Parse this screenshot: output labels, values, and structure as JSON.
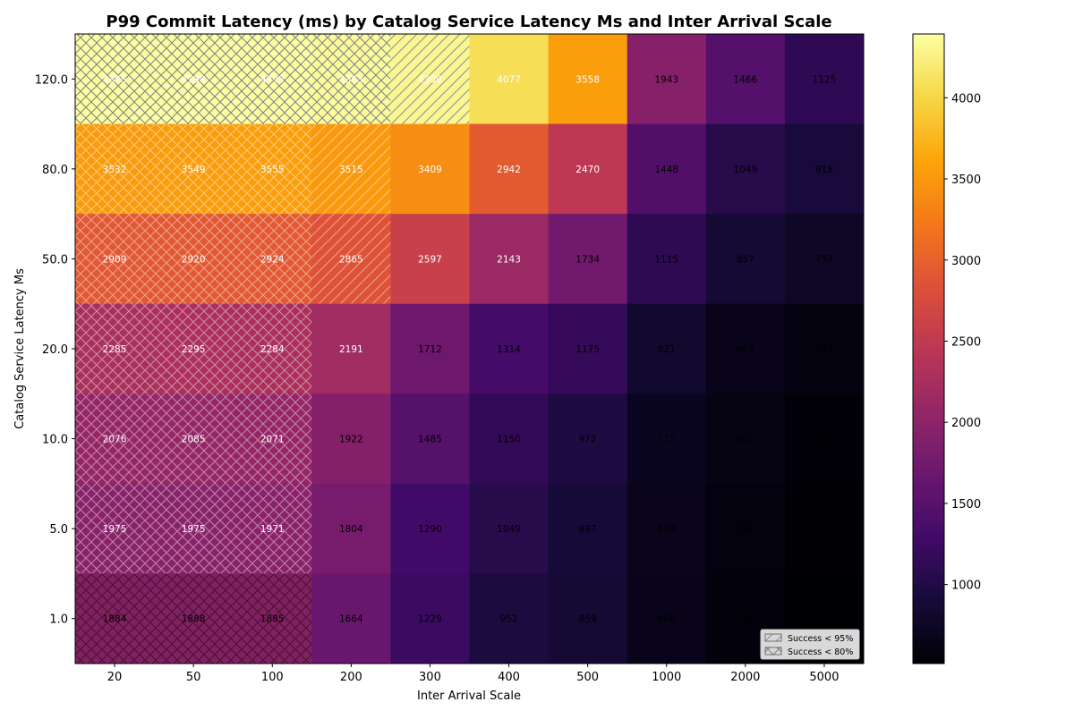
{
  "chart_data": {
    "type": "heatmap",
    "title": "P99 Commit Latency (ms) by Catalog Service Latency Ms and Inter Arrival Scale",
    "xlabel": "Inter Arrival Scale",
    "ylabel": "Catalog Service Latency Ms",
    "x_categories": [
      "20",
      "50",
      "100",
      "200",
      "300",
      "400",
      "500",
      "1000",
      "2000",
      "5000"
    ],
    "y_categories": [
      "120.0",
      "80.0",
      "50.0",
      "20.0",
      "10.0",
      "5.0",
      "1.0"
    ],
    "values": [
      [
        4385,
        4388,
        4393,
        4363,
        4309,
        4077,
        3558,
        1943,
        1466,
        1125
      ],
      [
        3532,
        3549,
        3555,
        3515,
        3409,
        2942,
        2470,
        1448,
        1049,
        918
      ],
      [
        2909,
        2920,
        2924,
        2865,
        2597,
        2143,
        1734,
        1115,
        857,
        757
      ],
      [
        2285,
        2295,
        2284,
        2191,
        1712,
        1314,
        1175,
        821,
        665,
        603
      ],
      [
        2076,
        2085,
        2071,
        1922,
        1485,
        1150,
        972,
        715,
        623,
        538
      ],
      [
        1975,
        1975,
        1971,
        1804,
        1290,
        1049,
        897,
        683,
        596,
        520
      ],
      [
        1884,
        1888,
        1885,
        1664,
        1229,
        952,
        859,
        666,
        564,
        513
      ]
    ],
    "hatch": [
      [
        "x",
        "x",
        "x",
        "x",
        "/",
        "",
        "",
        "",
        "",
        ""
      ],
      [
        "x",
        "x",
        "x",
        "/",
        "",
        "",
        "",
        "",
        "",
        ""
      ],
      [
        "x",
        "x",
        "x",
        "/",
        "",
        "",
        "",
        "",
        "",
        ""
      ],
      [
        "x",
        "x",
        "x",
        "",
        "",
        "",
        "",
        "",
        "",
        ""
      ],
      [
        "x",
        "x",
        "x",
        "",
        "",
        "",
        "",
        "",
        "",
        ""
      ],
      [
        "x",
        "x",
        "x",
        "",
        "",
        "",
        "",
        "",
        "",
        ""
      ],
      [
        "x",
        "x",
        "x",
        "",
        "",
        "",
        "",
        "",
        "",
        ""
      ]
    ],
    "colormap": "inferno",
    "color_range": [
      513,
      4393
    ],
    "colorbar_ticks": [
      "1000",
      "1500",
      "2000",
      "2500",
      "3000",
      "3500",
      "4000"
    ],
    "legend": {
      "placement": "lower-right",
      "entries": [
        {
          "hatch": "/",
          "label": "Success < 95%"
        },
        {
          "hatch": "x",
          "label": "Success < 80%"
        }
      ]
    }
  }
}
